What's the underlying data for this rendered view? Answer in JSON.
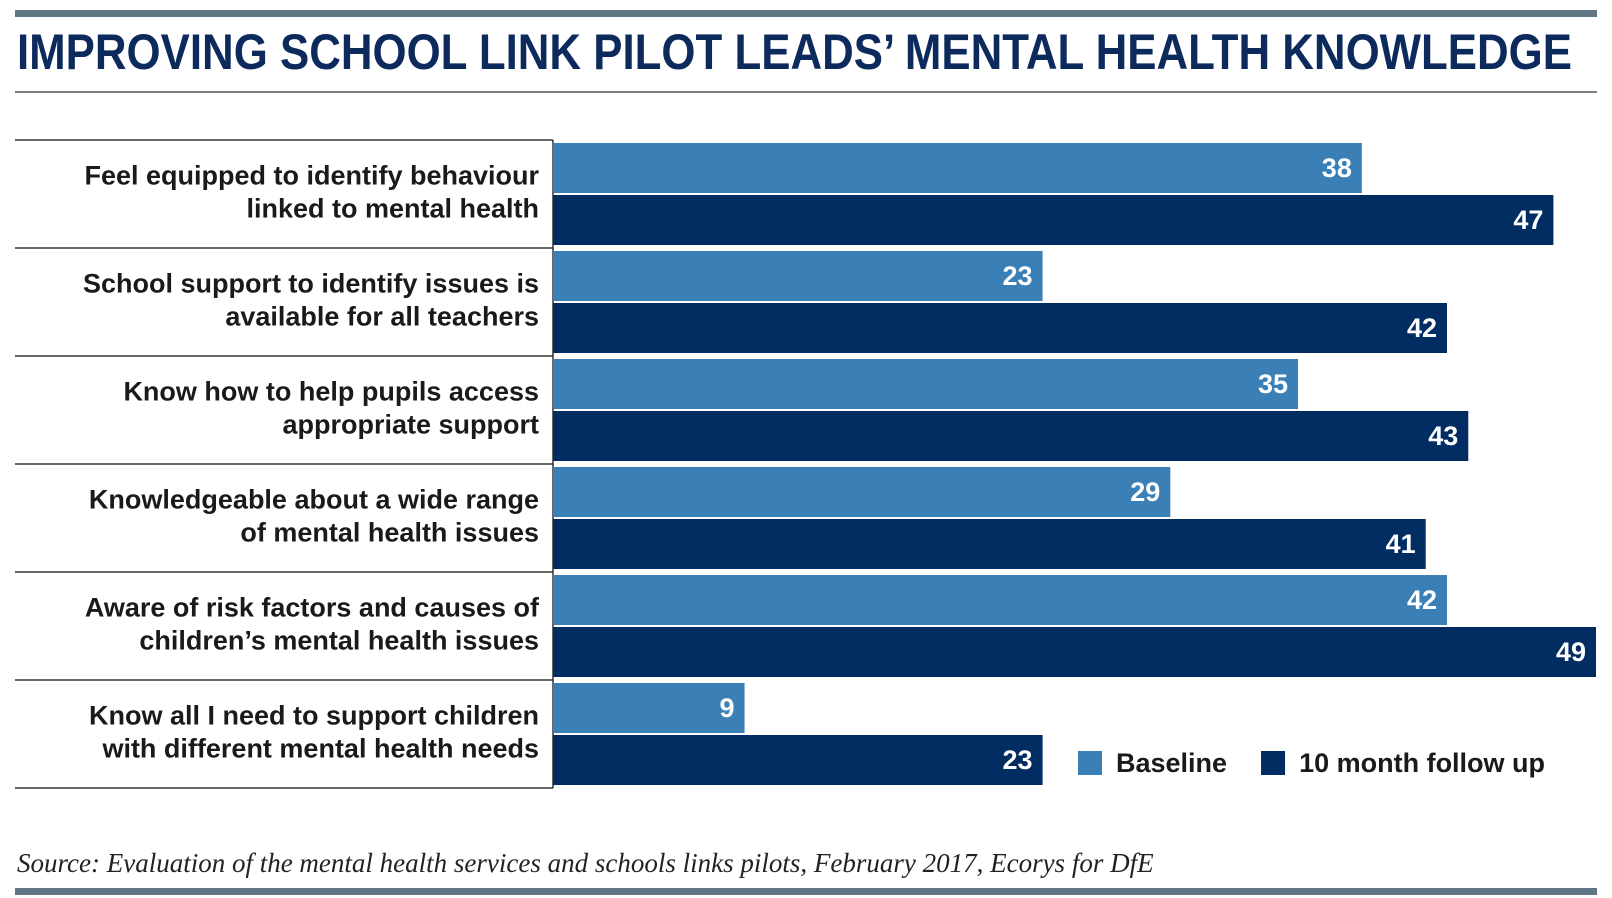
{
  "chart_data": {
    "type": "bar",
    "orientation": "horizontal",
    "title": "IMPROVING SCHOOL LINK PILOT LEADS’ MENTAL HEALTH KNOWLEDGE",
    "categories": [
      [
        "Feel equipped to identify behaviour",
        "linked to mental health"
      ],
      [
        "School support to identify issues is",
        "available for all teachers"
      ],
      [
        "Know how to help pupils access",
        "appropriate support"
      ],
      [
        "Knowledgeable about a wide range",
        "of mental health issues"
      ],
      [
        "Aware of risk factors and causes of",
        "children’s mental health issues"
      ],
      [
        "Know all I need to support children",
        "with different mental health needs"
      ]
    ],
    "series": [
      {
        "name": "Baseline",
        "color": "#3a7fb5",
        "values": [
          38,
          23,
          35,
          29,
          42,
          9
        ]
      },
      {
        "name": "10 month follow up",
        "color": "#022d62",
        "values": [
          47,
          42,
          43,
          41,
          49,
          23
        ]
      }
    ],
    "legend": "bottom-right",
    "source": "Source: Evaluation of the mental health services and schools links pilots, February 2017, Ecorys for DfE"
  }
}
